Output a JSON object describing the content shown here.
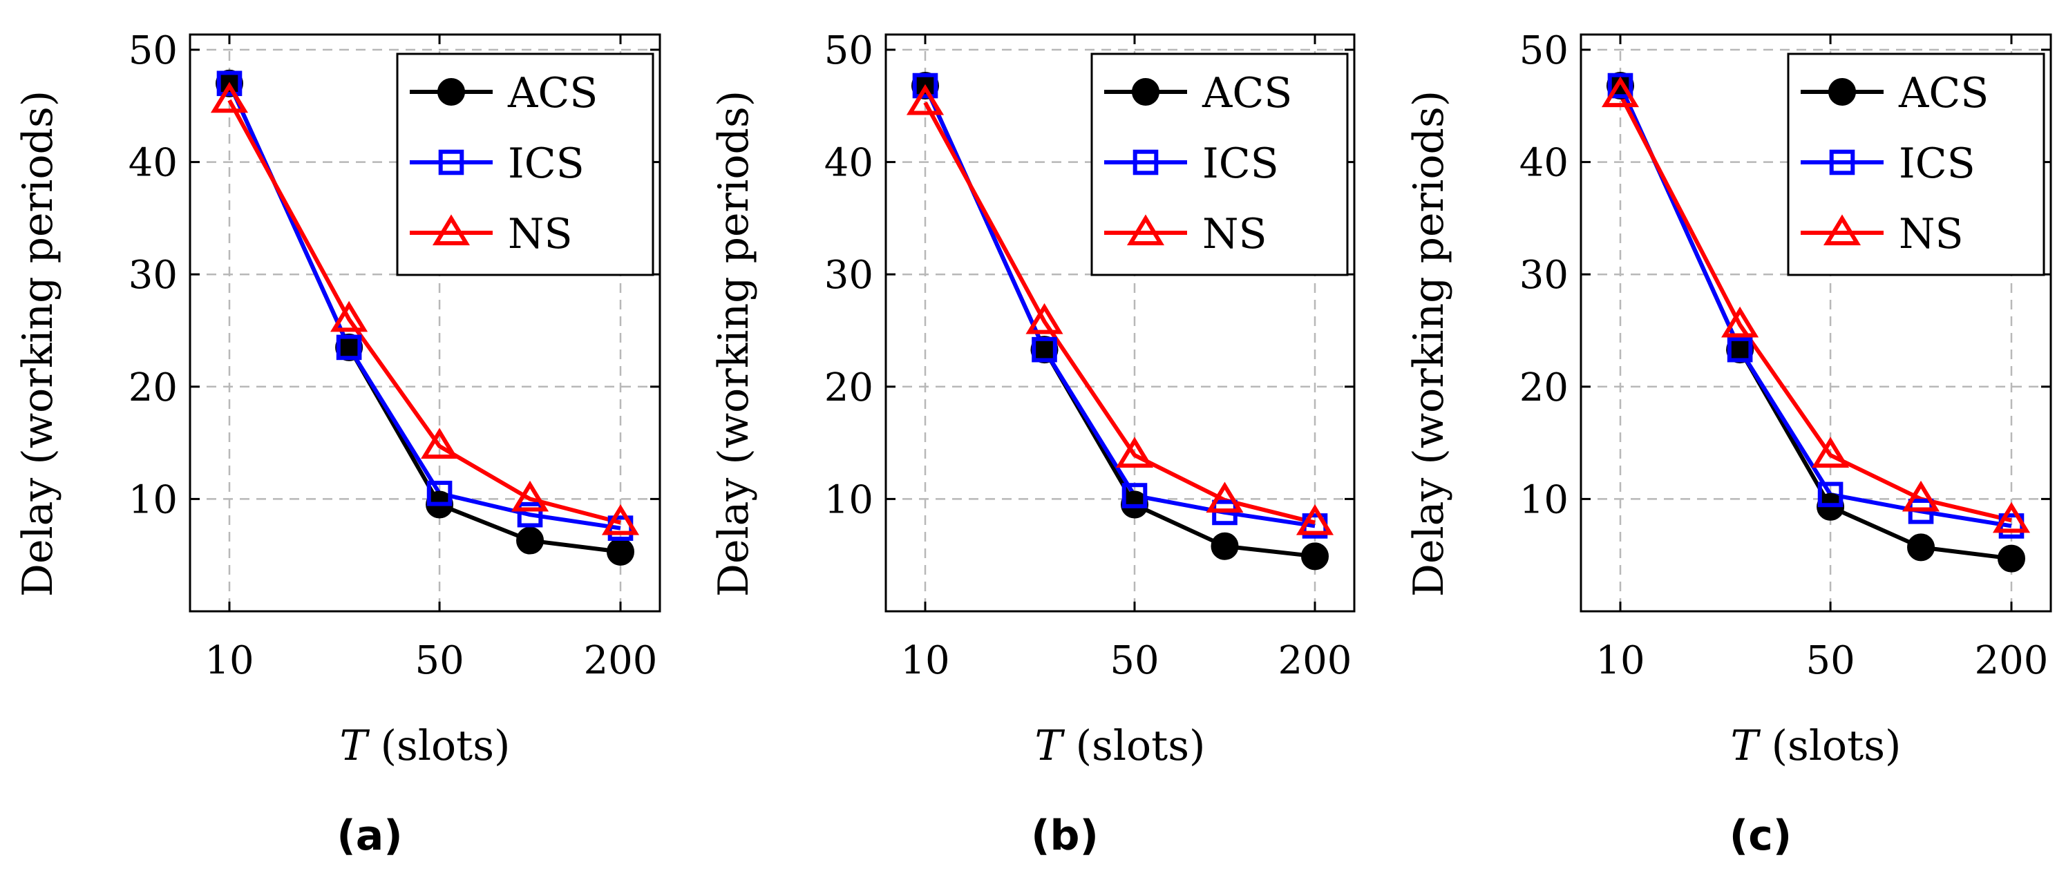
{
  "chart_data": [
    {
      "type": "line",
      "panel_label": "(a)",
      "x": [
        10,
        25,
        50,
        100,
        200
      ],
      "x_tick_labels": [
        "10",
        "50",
        "200"
      ],
      "x_tick_values": [
        10,
        50,
        200
      ],
      "xlabel_var": "T",
      "xlabel_rest": " (slots)",
      "ylabel": "Delay (working periods)",
      "ylim": [
        0,
        50
      ],
      "yticks": [
        10,
        20,
        30,
        40,
        50
      ],
      "xscale": "log",
      "grid": true,
      "legend_position": "top-right",
      "series": [
        {
          "name": "ACS",
          "values": [
            47,
            23.5,
            9.5,
            6.3,
            5.3
          ],
          "color": "#000000",
          "marker": "circle"
        },
        {
          "name": "ICS",
          "values": [
            47,
            23.5,
            10.5,
            8.6,
            7.4
          ],
          "color": "#0000ff",
          "marker": "square"
        },
        {
          "name": "NS",
          "values": [
            45.5,
            26,
            14.7,
            10,
            7.9
          ],
          "color": "#ff0000",
          "marker": "triangle"
        }
      ]
    },
    {
      "type": "line",
      "panel_label": "(b)",
      "x": [
        10,
        25,
        50,
        100,
        200
      ],
      "x_tick_labels": [
        "10",
        "50",
        "200"
      ],
      "x_tick_values": [
        10,
        50,
        200
      ],
      "xlabel_var": "T",
      "xlabel_rest": " (slots)",
      "ylabel": "Delay (working periods)",
      "ylim": [
        0,
        50
      ],
      "yticks": [
        10,
        20,
        30,
        40,
        50
      ],
      "xscale": "log",
      "grid": true,
      "legend_position": "top-right",
      "series": [
        {
          "name": "ACS",
          "values": [
            46.8,
            23.3,
            9.5,
            5.8,
            4.9
          ],
          "color": "#000000",
          "marker": "circle"
        },
        {
          "name": "ICS",
          "values": [
            46.8,
            23.3,
            10.3,
            8.8,
            7.6
          ],
          "color": "#0000ff",
          "marker": "square"
        },
        {
          "name": "NS",
          "values": [
            45.3,
            25.8,
            13.9,
            9.9,
            7.9
          ],
          "color": "#ff0000",
          "marker": "triangle"
        }
      ]
    },
    {
      "type": "line",
      "panel_label": "(c)",
      "x": [
        10,
        25,
        50,
        100,
        200
      ],
      "x_tick_labels": [
        "10",
        "50",
        "200"
      ],
      "x_tick_values": [
        10,
        50,
        200
      ],
      "xlabel_var": "T",
      "xlabel_rest": " (slots)",
      "ylabel": "Delay (working periods)",
      "ylim": [
        0,
        50
      ],
      "yticks": [
        10,
        20,
        30,
        40,
        50
      ],
      "xscale": "log",
      "grid": true,
      "legend_position": "top-right",
      "series": [
        {
          "name": "ACS",
          "values": [
            46.8,
            23.3,
            9.3,
            5.7,
            4.7
          ],
          "color": "#000000",
          "marker": "circle"
        },
        {
          "name": "ICS",
          "values": [
            46.8,
            23.3,
            10.4,
            8.9,
            7.6
          ],
          "color": "#0000ff",
          "marker": "square"
        },
        {
          "name": "NS",
          "values": [
            46,
            25.5,
            13.9,
            10,
            8.1
          ],
          "color": "#ff0000",
          "marker": "triangle"
        }
      ]
    }
  ]
}
